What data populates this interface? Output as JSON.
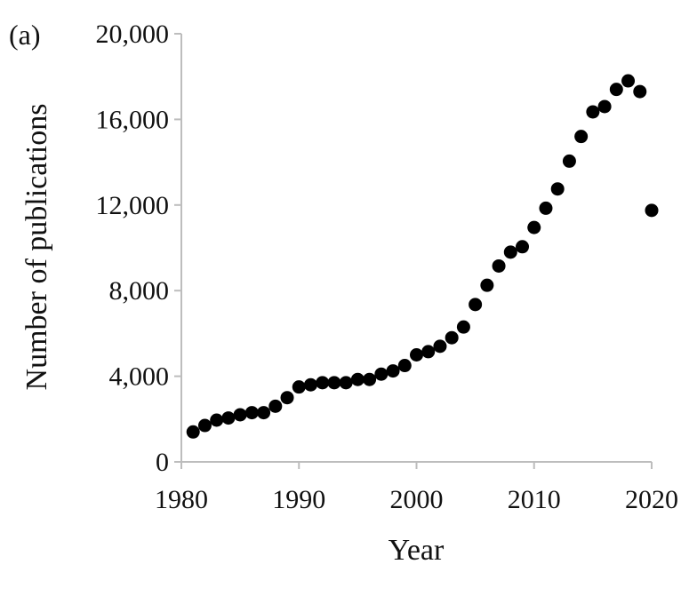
{
  "panel_label": "(a)",
  "chart_data": {
    "type": "scatter",
    "title": "",
    "xlabel": "Year",
    "ylabel": "Number of publications",
    "xlim": [
      1980,
      2020
    ],
    "ylim": [
      0,
      20000
    ],
    "x_ticks": [
      1980,
      1990,
      2000,
      2010,
      2020
    ],
    "x_tick_labels": [
      "1980",
      "1990",
      "2000",
      "2010",
      "2020"
    ],
    "y_ticks": [
      0,
      4000,
      8000,
      12000,
      16000,
      20000
    ],
    "y_tick_labels": [
      "0",
      "4,000",
      "8,000",
      "12,000",
      "16,000",
      "20,000"
    ],
    "grid": false,
    "marker_color": "#000000",
    "series": [
      {
        "x": [
          1981,
          1982,
          1983,
          1984,
          1985,
          1986,
          1987,
          1988,
          1989,
          1990,
          1991,
          1992,
          1993,
          1994,
          1995,
          1996,
          1997,
          1998,
          1999,
          2000,
          2001,
          2002,
          2003,
          2004,
          2005,
          2006,
          2007,
          2008,
          2009,
          2010,
          2011,
          2012,
          2013,
          2014,
          2015,
          2016,
          2017,
          2018,
          2019,
          2020
        ],
        "y": [
          1400,
          1700,
          1950,
          2050,
          2200,
          2300,
          2300,
          2600,
          3000,
          3500,
          3600,
          3700,
          3700,
          3700,
          3850,
          3850,
          4100,
          4250,
          4500,
          5000,
          5150,
          5400,
          5800,
          6300,
          7350,
          8250,
          9150,
          9800,
          10050,
          10950,
          11850,
          12750,
          14050,
          15200,
          16350,
          16600,
          17400,
          17800,
          17300,
          11750
        ]
      }
    ]
  }
}
